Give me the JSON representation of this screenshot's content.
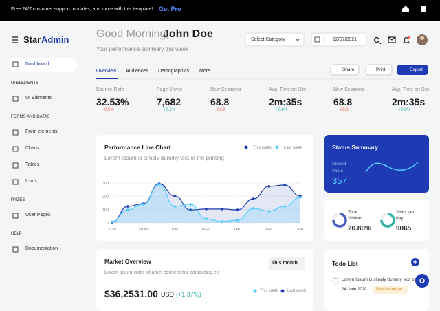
{
  "banner": {
    "text": "Free 24/7 customer support, updates, and more with this template!",
    "link": "Get Pro"
  },
  "brand": {
    "star": "Star",
    "admin": "Admin"
  },
  "sidebar": {
    "dashboard": "Dashboard",
    "sections": [
      {
        "title": "UI ELEMENTS",
        "items": [
          "UI Elements"
        ]
      },
      {
        "title": "FORMS AND DATAS",
        "items": [
          "Form elements",
          "Charts",
          "Tables",
          "Icons"
        ]
      },
      {
        "title": "PAGES",
        "items": [
          "User Pages"
        ]
      },
      {
        "title": "HELP",
        "items": [
          "Documentation"
        ]
      }
    ]
  },
  "greeting": {
    "salutation": "Good Morning,",
    "name": "John Doe",
    "subtitle": "Your performance summary this week"
  },
  "toolbar": {
    "select": "Select Category",
    "date": "12/07/2021"
  },
  "tabs": [
    "Overview",
    "Audiences",
    "Demographics",
    "More"
  ],
  "actions": [
    "Share",
    "Print",
    "Export"
  ],
  "stats": [
    {
      "label": "Bounce Rate",
      "value": "32.53%",
      "change": "-0.5%"
    },
    {
      "label": "Page Views",
      "value": "7,682",
      "change": "+0.1%"
    },
    {
      "label": "New Sessions",
      "value": "68.8",
      "change": "68.8"
    },
    {
      "label": "Avg. Time on Site",
      "value": "2m:35s",
      "change": "+0.8%"
    },
    {
      "label": "New Sessions",
      "value": "68.8",
      "change": "68.8"
    },
    {
      "label": "Avg. Time on Site",
      "value": "2m:35s",
      "change": "+0.8%"
    }
  ],
  "performance": {
    "title": "Performance Line Chart",
    "subtitle": "Lorem Ipsum is simply dummy text of the printing",
    "chart": {
      "type": "line",
      "categories": [
        "SUN",
        null,
        "MON",
        null,
        "TUE",
        null,
        "WED",
        null,
        "THU",
        null,
        "FRI",
        null,
        "SAT"
      ],
      "series": [
        {
          "name": "This week",
          "color": "#1f3bb3",
          "values": [
            5,
            124,
            145,
            295,
            202,
            98,
            104,
            104,
            98,
            181,
            275,
            285,
            202
          ]
        },
        {
          "name": "Last week",
          "color": "#52cdff",
          "values": [
            10,
            98,
            140,
            290,
            124,
            140,
            31,
            10,
            21,
            109,
            88,
            124,
            192
          ]
        }
      ],
      "ylim": [
        0,
        300
      ],
      "yticks": [
        0,
        100,
        200,
        300
      ],
      "grid": true
    }
  },
  "status": {
    "title": "Status Summary",
    "label": "Closed Value",
    "value": "357"
  },
  "visitors": {
    "label": "Total Visitors",
    "value": "26.80%"
  },
  "visits": {
    "label": "Visits per day",
    "value": "9065"
  },
  "market": {
    "title": "Market Overview",
    "period": "This month",
    "subtitle": "Lorem ipsum color sit amet consectetur adipisicing elit",
    "amount": "$36,2531.00",
    "currency": "USD",
    "change": "(+1.37%)",
    "legend": [
      "This week",
      "Last week"
    ]
  },
  "todo": {
    "title": "Todo List",
    "items": [
      {
        "text": "Lorem Ipsum is simply dummy text of",
        "date": "24 June 2020",
        "badge": "Due tomorrow"
      }
    ]
  }
}
